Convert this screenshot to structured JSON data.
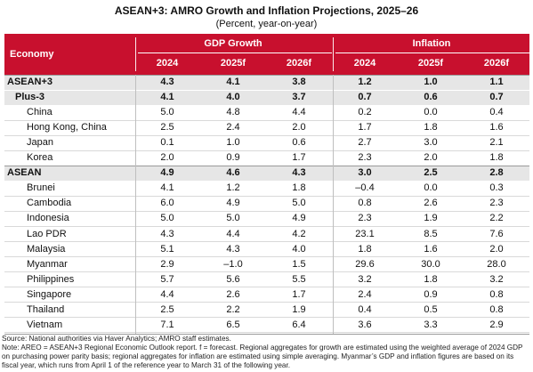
{
  "title": "ASEAN+3: AMRO Growth and Inflation Projections, 2025–26",
  "subtitle": "(Percent, year-on-year)",
  "header": {
    "economy": "Economy",
    "gdp_group": "GDP Growth",
    "inflation_group": "Inflation",
    "years": [
      "2024",
      "2025f",
      "2026f",
      "2024",
      "2025f",
      "2026f"
    ]
  },
  "rows": [
    {
      "name": "ASEAN+3",
      "level": 0,
      "bold": true,
      "values": [
        "4.3",
        "4.1",
        "3.8",
        "1.2",
        "1.0",
        "1.1"
      ]
    },
    {
      "name": "Plus-3",
      "level": 1,
      "bold": true,
      "values": [
        "4.1",
        "4.0",
        "3.7",
        "0.7",
        "0.6",
        "0.7"
      ]
    },
    {
      "name": "China",
      "level": 2,
      "bold": false,
      "values": [
        "5.0",
        "4.8",
        "4.4",
        "0.2",
        "0.0",
        "0.4"
      ]
    },
    {
      "name": "Hong Kong, China",
      "level": 2,
      "bold": false,
      "values": [
        "2.5",
        "2.4",
        "2.0",
        "1.7",
        "1.8",
        "1.6"
      ]
    },
    {
      "name": "Japan",
      "level": 2,
      "bold": false,
      "values": [
        "0.1",
        "1.0",
        "0.6",
        "2.7",
        "3.0",
        "2.1"
      ]
    },
    {
      "name": "Korea",
      "level": 2,
      "bold": false,
      "values": [
        "2.0",
        "0.9",
        "1.7",
        "2.3",
        "2.0",
        "1.8"
      ]
    },
    {
      "name": "ASEAN",
      "level": 0,
      "bold": true,
      "values": [
        "4.9",
        "4.6",
        "4.3",
        "3.0",
        "2.5",
        "2.8"
      ]
    },
    {
      "name": "Brunei",
      "level": 2,
      "bold": false,
      "values": [
        "4.1",
        "1.2",
        "1.8",
        "–0.4",
        "0.0",
        "0.3"
      ]
    },
    {
      "name": "Cambodia",
      "level": 2,
      "bold": false,
      "values": [
        "6.0",
        "4.9",
        "5.0",
        "0.8",
        "2.6",
        "2.3"
      ]
    },
    {
      "name": "Indonesia",
      "level": 2,
      "bold": false,
      "values": [
        "5.0",
        "5.0",
        "4.9",
        "2.3",
        "1.9",
        "2.2"
      ]
    },
    {
      "name": "Lao PDR",
      "level": 2,
      "bold": false,
      "values": [
        "4.3",
        "4.4",
        "4.2",
        "23.1",
        "8.5",
        "7.6"
      ]
    },
    {
      "name": "Malaysia",
      "level": 2,
      "bold": false,
      "values": [
        "5.1",
        "4.3",
        "4.0",
        "1.8",
        "1.6",
        "2.0"
      ]
    },
    {
      "name": "Myanmar",
      "level": 2,
      "bold": false,
      "values": [
        "2.9",
        "–1.0",
        "1.5",
        "29.6",
        "30.0",
        "28.0"
      ]
    },
    {
      "name": "Philippines",
      "level": 2,
      "bold": false,
      "values": [
        "5.7",
        "5.6",
        "5.5",
        "3.2",
        "1.8",
        "3.2"
      ]
    },
    {
      "name": "Singapore",
      "level": 2,
      "bold": false,
      "values": [
        "4.4",
        "2.6",
        "1.7",
        "2.4",
        "0.9",
        "0.8"
      ]
    },
    {
      "name": "Thailand",
      "level": 2,
      "bold": false,
      "values": [
        "2.5",
        "2.2",
        "1.9",
        "0.4",
        "0.5",
        "0.8"
      ]
    },
    {
      "name": "Vietnam",
      "level": 2,
      "bold": false,
      "values": [
        "7.1",
        "6.5",
        "6.4",
        "3.6",
        "3.3",
        "2.9"
      ]
    }
  ],
  "source": "Source: National authorities via Haver Analytics; AMRO staff estimates.",
  "note": "Note: AREO = ASEAN+3 Regional Economic Outlook report. f = forecast. Regional aggregates for growth are estimated using the weighted average of 2024 GDP on purchasing power parity basis; regional aggregates for inflation are estimated using simple averaging. Myanmar’s GDP and inflation figures are based on its fiscal year, which runs from April 1 of the reference year to March 31 of the following year.",
  "colors": {
    "header_bg": "#c8102e",
    "group_bg": "#e6e6e6"
  }
}
